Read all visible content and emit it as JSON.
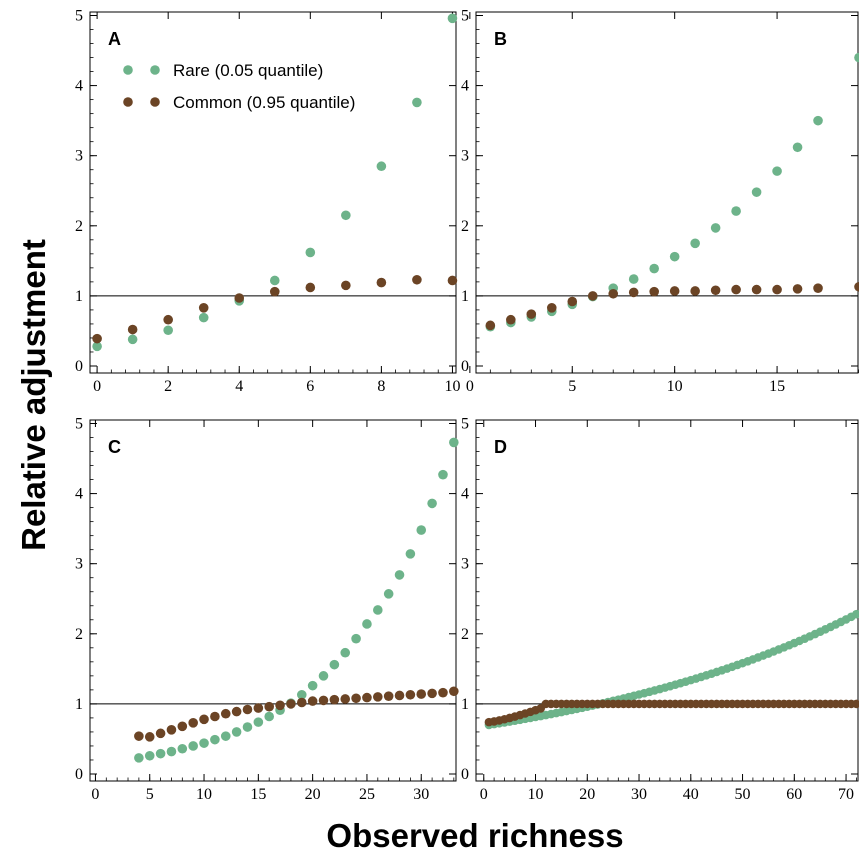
{
  "ylabel": "Relative adjustment",
  "xlabel": "Observed richness",
  "colors": {
    "rare": "#6db38a",
    "common": "#6b4425",
    "refline": "#000000"
  },
  "legend": {
    "rare": "Rare (0.05 quantile)",
    "common": "Common (0.95 quantile)",
    "placement": "top-left of panel A"
  },
  "chart_data": [
    {
      "type": "scatter",
      "panel": "A",
      "xlim": [
        -0.2,
        10.1
      ],
      "ylim": [
        -0.1,
        5.05
      ],
      "xticks": [
        0,
        2,
        4,
        6,
        8,
        10
      ],
      "yticks": [
        0,
        1,
        2,
        3,
        4,
        5
      ],
      "reference_line": 1,
      "series": [
        {
          "name": "Rare (0.05 quantile)",
          "x": [
            0,
            1,
            2,
            3,
            4,
            5,
            6,
            7,
            8,
            9,
            10
          ],
          "y": [
            0.28,
            0.38,
            0.51,
            0.69,
            0.93,
            1.22,
            1.62,
            2.15,
            2.85,
            3.76,
            4.96
          ]
        },
        {
          "name": "Common (0.95 quantile)",
          "x": [
            0,
            1,
            2,
            3,
            4,
            5,
            6,
            7,
            8,
            9,
            10
          ],
          "y": [
            0.39,
            0.52,
            0.66,
            0.83,
            0.97,
            1.06,
            1.12,
            1.15,
            1.19,
            1.23,
            1.22
          ]
        }
      ]
    },
    {
      "type": "scatter",
      "panel": "B",
      "xlim": [
        0.3,
        19
      ],
      "ylim": [
        -0.1,
        5.05
      ],
      "xticks": [
        0,
        5,
        10,
        15
      ],
      "yticks": [
        0,
        1,
        2,
        3,
        4,
        5
      ],
      "reference_line": 1,
      "series": [
        {
          "name": "Rare (0.05 quantile)",
          "x": [
            1,
            2,
            3,
            4,
            5,
            6,
            7,
            8,
            9,
            10,
            11,
            12,
            13,
            14,
            15,
            16,
            17,
            19
          ],
          "y": [
            0.56,
            0.62,
            0.7,
            0.78,
            0.88,
            0.99,
            1.11,
            1.24,
            1.39,
            1.56,
            1.75,
            1.97,
            2.21,
            2.48,
            2.78,
            3.12,
            3.5,
            4.4
          ]
        },
        {
          "name": "Common (0.95 quantile)",
          "x": [
            1,
            2,
            3,
            4,
            5,
            6,
            7,
            8,
            9,
            10,
            11,
            12,
            13,
            14,
            15,
            16,
            17,
            19
          ],
          "y": [
            0.58,
            0.66,
            0.74,
            0.83,
            0.92,
            1.0,
            1.03,
            1.05,
            1.06,
            1.07,
            1.07,
            1.08,
            1.09,
            1.09,
            1.09,
            1.1,
            1.11,
            1.13
          ]
        }
      ]
    },
    {
      "type": "scatter",
      "panel": "C",
      "xlim": [
        -0.5,
        33.2
      ],
      "ylim": [
        -0.1,
        5.05
      ],
      "xticks": [
        0,
        5,
        10,
        15,
        20,
        25,
        30
      ],
      "yticks": [
        0,
        1,
        2,
        3,
        4,
        5
      ],
      "reference_line": 1,
      "series": [
        {
          "name": "Rare (0.05 quantile)",
          "x": [
            4,
            5,
            6,
            7,
            8,
            9,
            10,
            11,
            12,
            13,
            14,
            15,
            16,
            17,
            18,
            19,
            20,
            21,
            22,
            23,
            24,
            25,
            26,
            27,
            28,
            29,
            30,
            31,
            32,
            33
          ],
          "y": [
            0.23,
            0.26,
            0.29,
            0.32,
            0.36,
            0.4,
            0.44,
            0.49,
            0.54,
            0.6,
            0.67,
            0.74,
            0.82,
            0.91,
            1.01,
            1.13,
            1.26,
            1.4,
            1.56,
            1.73,
            1.93,
            2.14,
            2.34,
            2.57,
            2.84,
            3.14,
            3.48,
            3.86,
            4.27,
            4.73
          ]
        },
        {
          "name": "Common (0.95 quantile)",
          "x": [
            4,
            5,
            6,
            7,
            8,
            9,
            10,
            11,
            12,
            13,
            14,
            15,
            16,
            17,
            18,
            19,
            20,
            21,
            22,
            23,
            24,
            25,
            26,
            27,
            28,
            29,
            30,
            31,
            32,
            33
          ],
          "y": [
            0.54,
            0.53,
            0.58,
            0.63,
            0.68,
            0.73,
            0.78,
            0.82,
            0.86,
            0.89,
            0.92,
            0.94,
            0.96,
            0.98,
            1.0,
            1.02,
            1.04,
            1.05,
            1.06,
            1.07,
            1.08,
            1.09,
            1.1,
            1.11,
            1.12,
            1.13,
            1.14,
            1.15,
            1.16,
            1.18
          ]
        }
      ]
    },
    {
      "type": "scatter",
      "panel": "D",
      "xlim": [
        -1.5,
        72.5
      ],
      "ylim": [
        -0.1,
        5.05
      ],
      "xticks": [
        0,
        10,
        20,
        30,
        40,
        50,
        60,
        70
      ],
      "yticks": [
        0,
        1,
        2,
        3,
        4,
        5
      ],
      "reference_line": 1,
      "series": [
        {
          "name": "Rare (0.05 quantile)",
          "x_range": [
            1,
            72
          ],
          "y_curve": {
            "shape": "exponential",
            "start": 0.7,
            "end": 2.28
          }
        },
        {
          "name": "Common (0.95 quantile)",
          "x_range": [
            1,
            72
          ],
          "y_curve": {
            "shape": "rise_then_flat",
            "start": 0.74,
            "flat_from_x": 12,
            "flat_value": 1.0
          }
        }
      ]
    }
  ]
}
